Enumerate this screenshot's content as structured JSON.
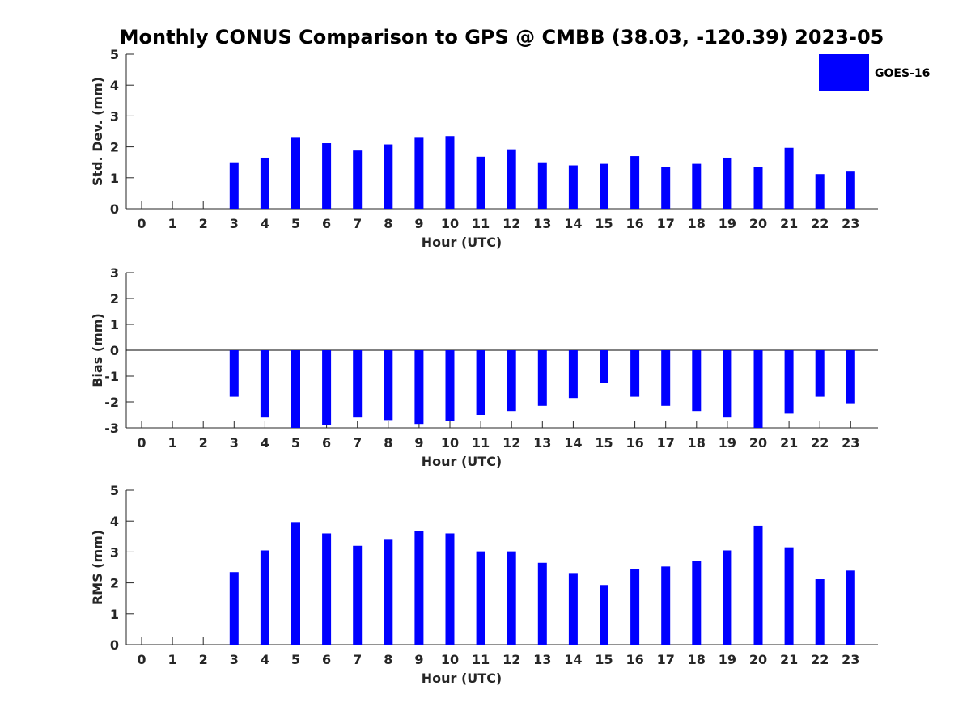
{
  "chart_data": [
    {
      "type": "bar",
      "title": "Monthly CONUS Comparison to GPS @ CMBB (38.03, -120.39) 2023-05",
      "xlabel": "Hour (UTC)",
      "ylabel": "Std. Dev. (mm)",
      "ylim": [
        0,
        5
      ],
      "yticks": [
        0,
        1,
        2,
        3,
        4,
        5
      ],
      "categories": [
        "0",
        "1",
        "2",
        "3",
        "4",
        "5",
        "6",
        "7",
        "8",
        "9",
        "10",
        "11",
        "12",
        "13",
        "14",
        "15",
        "16",
        "17",
        "18",
        "19",
        "20",
        "21",
        "22",
        "23"
      ],
      "series": [
        {
          "name": "GOES-16",
          "color": "#0000ff",
          "values": [
            null,
            null,
            null,
            1.5,
            1.65,
            2.32,
            2.12,
            1.88,
            2.08,
            2.32,
            2.35,
            1.68,
            1.92,
            1.5,
            1.4,
            1.45,
            1.7,
            1.35,
            1.45,
            1.65,
            1.35,
            1.97,
            1.12,
            1.2
          ]
        }
      ],
      "legend": {
        "position": "top-right",
        "entries": [
          "GOES-16"
        ]
      }
    },
    {
      "type": "bar",
      "xlabel": "Hour (UTC)",
      "ylabel": "Bias (mm)",
      "ylim": [
        -3,
        3
      ],
      "yticks": [
        -3,
        -2,
        -1,
        0,
        1,
        2,
        3
      ],
      "categories": [
        "0",
        "1",
        "2",
        "3",
        "4",
        "5",
        "6",
        "7",
        "8",
        "9",
        "10",
        "11",
        "12",
        "13",
        "14",
        "15",
        "16",
        "17",
        "18",
        "19",
        "20",
        "21",
        "22",
        "23"
      ],
      "series": [
        {
          "name": "GOES-16",
          "color": "#0000ff",
          "values": [
            null,
            null,
            null,
            -1.8,
            -2.6,
            -3.0,
            -2.9,
            -2.6,
            -2.7,
            -2.85,
            -2.75,
            -2.5,
            -2.35,
            -2.15,
            -1.85,
            -1.25,
            -1.8,
            -2.15,
            -2.35,
            -2.6,
            -3.0,
            -2.45,
            -1.8,
            -2.05
          ]
        }
      ]
    },
    {
      "type": "bar",
      "xlabel": "Hour (UTC)",
      "ylabel": "RMS (mm)",
      "ylim": [
        0,
        5
      ],
      "yticks": [
        0,
        1,
        2,
        3,
        4,
        5
      ],
      "categories": [
        "0",
        "1",
        "2",
        "3",
        "4",
        "5",
        "6",
        "7",
        "8",
        "9",
        "10",
        "11",
        "12",
        "13",
        "14",
        "15",
        "16",
        "17",
        "18",
        "19",
        "20",
        "21",
        "22",
        "23"
      ],
      "series": [
        {
          "name": "GOES-16",
          "color": "#0000ff",
          "values": [
            null,
            null,
            null,
            2.35,
            3.05,
            3.97,
            3.6,
            3.2,
            3.42,
            3.68,
            3.6,
            3.02,
            3.02,
            2.65,
            2.32,
            1.93,
            2.45,
            2.53,
            2.72,
            3.05,
            3.85,
            3.15,
            2.12,
            2.4
          ]
        }
      ]
    }
  ]
}
